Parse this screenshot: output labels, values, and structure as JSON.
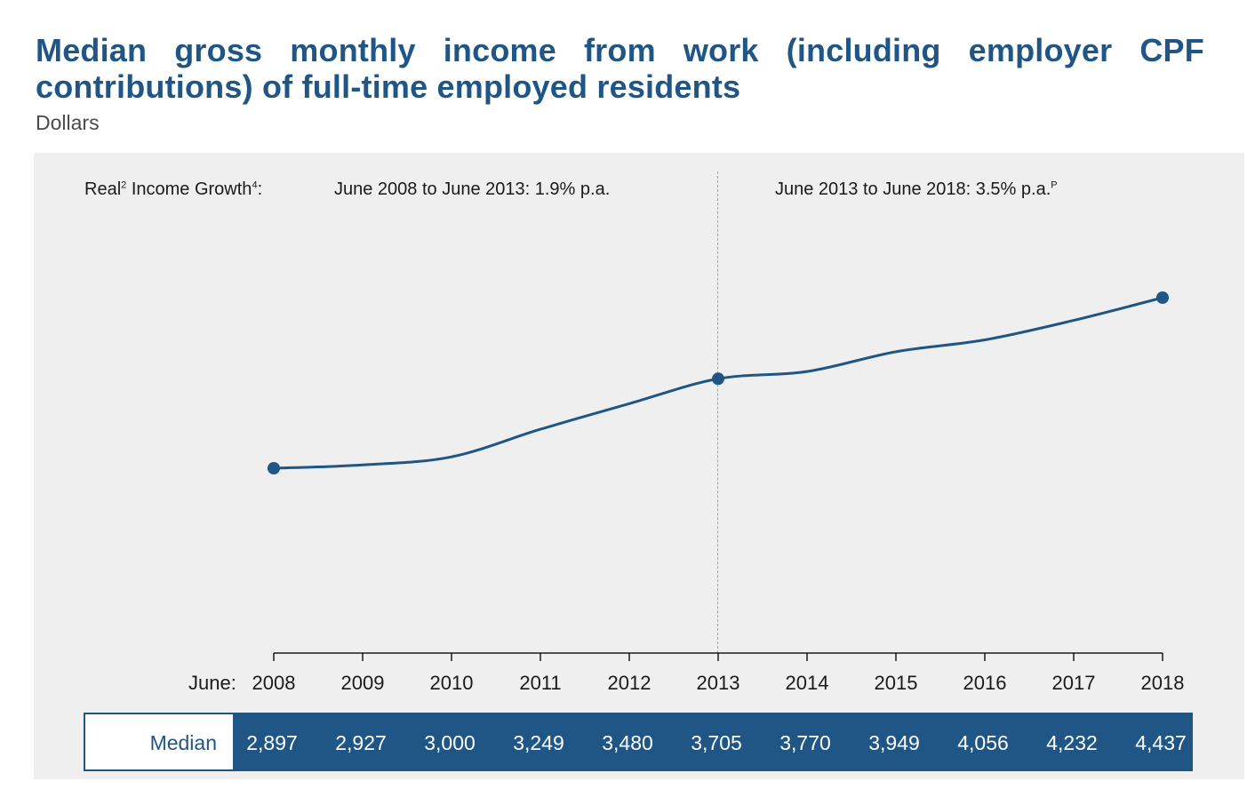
{
  "title_words": [
    "Median",
    "gross",
    "monthly",
    "income",
    "from",
    "work",
    "(including",
    "employer",
    "CPF"
  ],
  "title_line2": "contributions) of full-time employed residents",
  "subtitle": "Dollars",
  "growth": {
    "label": "Real",
    "label_sup": "2",
    "label_rest": " Income Growth",
    "label_sup2": "4",
    "label_colon": ":",
    "period_1": "June 2008 to June 2013: 1.9% p.a.",
    "period_2": "June 2013 to June 2018: 3.5% p.a.",
    "period_2_sup": "P"
  },
  "colors": {
    "line": "#1f5686",
    "accent": "#1f5686",
    "panel": "#efefef",
    "axis": "#1a1a1a",
    "divider": "#a3a3a3"
  },
  "x_prefix": "June:",
  "table_label": "Median",
  "chart_data": {
    "type": "line",
    "title": "Median gross monthly income from work (including employer CPF contributions) of full-time employed residents",
    "subtitle": "Dollars",
    "x": [
      "2008",
      "2009",
      "2010",
      "2011",
      "2012",
      "2013",
      "2014",
      "2015",
      "2016",
      "2017",
      "2018"
    ],
    "values": [
      2897,
      2927,
      3000,
      3249,
      3480,
      3705,
      3770,
      3949,
      4056,
      4232,
      4437
    ],
    "value_labels": [
      "2,897",
      "2,927",
      "3,000",
      "3,249",
      "3,480",
      "3,705",
      "3,770",
      "3,949",
      "4,056",
      "4,232",
      "4,437"
    ],
    "marked_points": [
      0,
      5,
      10
    ],
    "divider_at": "2013",
    "grid": false,
    "legend": "none"
  }
}
